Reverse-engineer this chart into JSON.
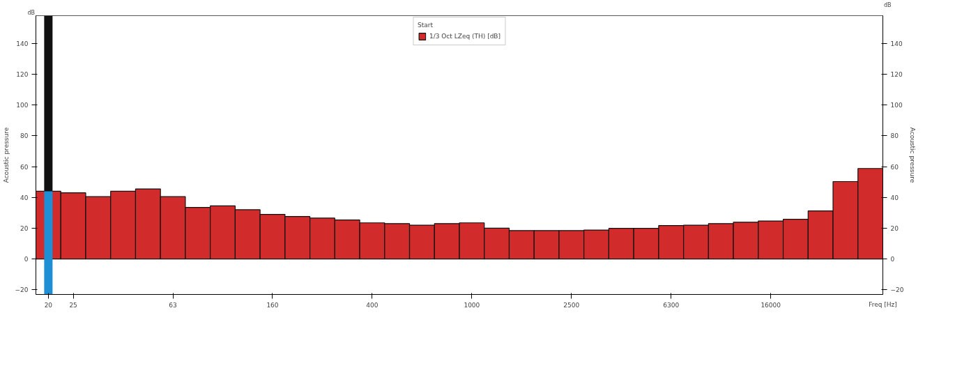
{
  "chart_data": {
    "type": "bar",
    "categories": [
      "20",
      "25",
      null,
      null,
      null,
      "63",
      null,
      null,
      null,
      "160",
      null,
      null,
      null,
      "400",
      null,
      null,
      null,
      "1000",
      null,
      null,
      null,
      "2500",
      null,
      null,
      null,
      "6300",
      null,
      null,
      null,
      "16000",
      null,
      null,
      null,
      null
    ],
    "series": [
      {
        "name": "1/3 Oct LZeq (TH) [dB]",
        "color": "#d22b2b",
        "values": [
          44,
          43,
          40.5,
          44,
          45.5,
          40.5,
          33.5,
          34.5,
          32,
          29,
          27.6,
          26.6,
          25.4,
          23.5,
          23,
          22,
          23,
          23.5,
          20,
          18.5,
          18.5,
          18.5,
          18.8,
          19.9,
          19.9,
          21.7,
          22,
          23,
          23.9,
          24.7,
          25.8,
          31.2,
          50.3,
          58.8
        ]
      }
    ],
    "xlabel": "Freq [Hz]",
    "ylabel": "Acoustic pressure",
    "y2label": "Acoustic pressure",
    "legend_title": "Start",
    "annotations": [
      "dB",
      "dB"
    ],
    "ylim": [
      -23,
      158
    ],
    "yticks": [
      -20,
      0,
      20,
      40,
      60,
      80,
      100,
      120,
      140
    ],
    "y2lim": [
      -23,
      158
    ],
    "y2ticks": [
      -20,
      0,
      20,
      40,
      60,
      80,
      100,
      120,
      140
    ],
    "ref_lines": [
      {
        "axis": "x",
        "value": "20",
        "color": "#111111"
      },
      {
        "axis": "x",
        "value": "20",
        "color": "#1e8fd5"
      }
    ],
    "grid": false,
    "legend": "top"
  }
}
